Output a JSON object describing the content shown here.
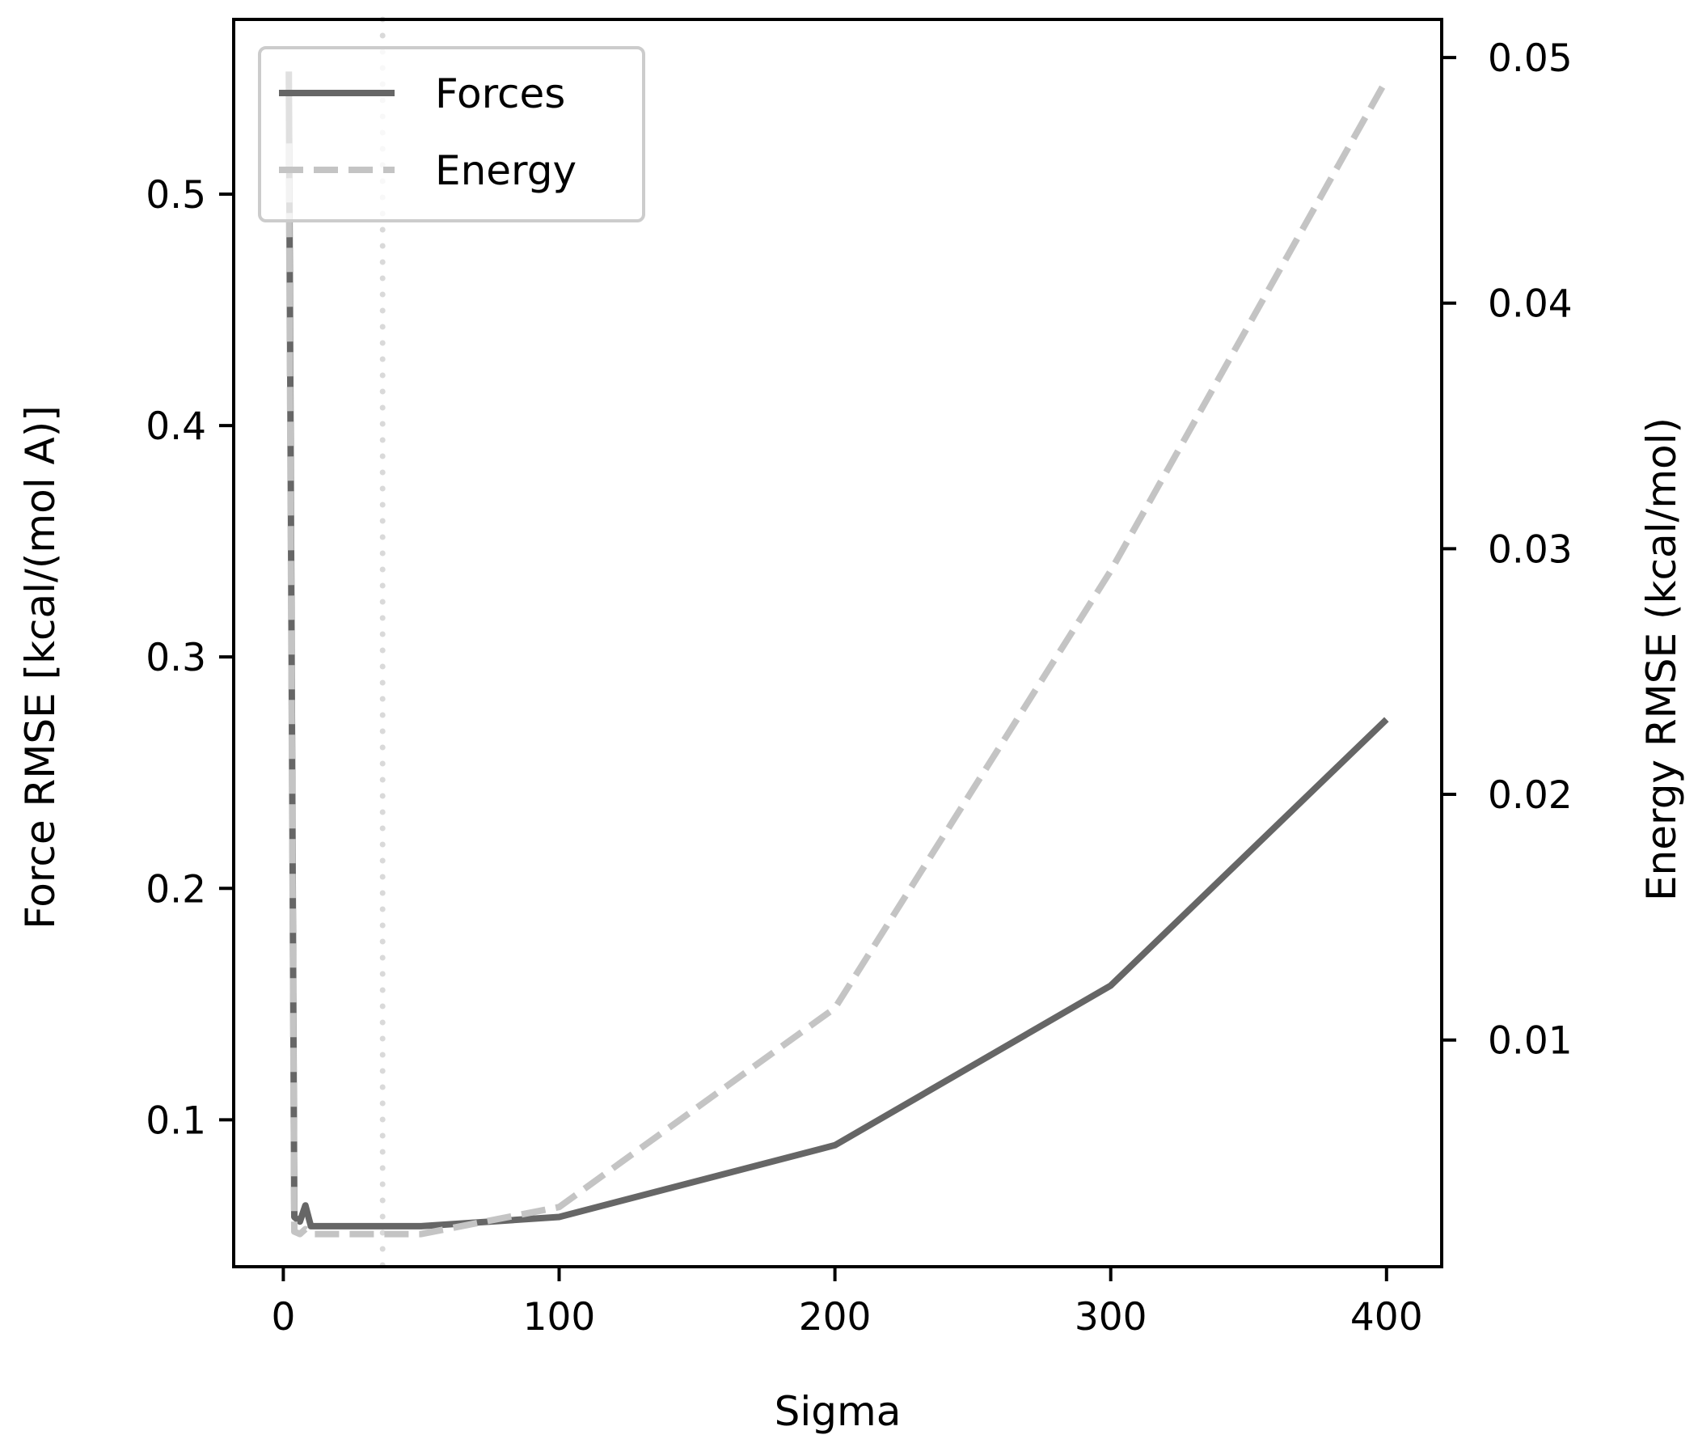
{
  "chart_data": {
    "type": "line",
    "xlabel": "Sigma",
    "ylabel_left": "Force RMSE [kcal/(mol A)]",
    "ylabel_right": "Energy RMSE (kcal/mol)",
    "xlim": [
      -18,
      420
    ],
    "ylim_left": [
      0.0365,
      0.5755
    ],
    "ylim_right": [
      0.00077,
      0.05155
    ],
    "x_ticks": [
      0,
      100,
      200,
      300,
      400
    ],
    "x_tick_labels": [
      "0",
      "100",
      "200",
      "300",
      "400"
    ],
    "y_left_ticks": [
      0.1,
      0.2,
      0.3,
      0.4,
      0.5
    ],
    "y_left_tick_labels": [
      "0.1",
      "0.2",
      "0.3",
      "0.4",
      "0.5"
    ],
    "y_right_ticks": [
      0.01,
      0.02,
      0.03,
      0.04,
      0.05
    ],
    "y_right_tick_labels": [
      "0.01",
      "0.02",
      "0.03",
      "0.04",
      "0.05"
    ],
    "vline_x": 36,
    "grid": false,
    "legend_position": "upper-left",
    "series": [
      {
        "name": "Forces",
        "axis": "left",
        "color": "#666666",
        "style": "solid",
        "x": [
          2,
          4,
          6,
          8,
          10,
          20,
          50,
          100,
          200,
          300,
          400
        ],
        "y": [
          0.553,
          0.058,
          0.056,
          0.063,
          0.054,
          0.054,
          0.054,
          0.058,
          0.089,
          0.158,
          0.273
        ]
      },
      {
        "name": "Energy",
        "axis": "right",
        "color": "#c4c4c4",
        "style": "dashed",
        "x": [
          2,
          4,
          6,
          8,
          10,
          20,
          50,
          100,
          200,
          300,
          400
        ],
        "y": [
          0.0465,
          0.0022,
          0.0021,
          0.0023,
          0.0021,
          0.0021,
          0.0021,
          0.0032,
          0.0113,
          0.0291,
          0.0491
        ]
      }
    ],
    "vline_color": "#d9d9d9"
  }
}
